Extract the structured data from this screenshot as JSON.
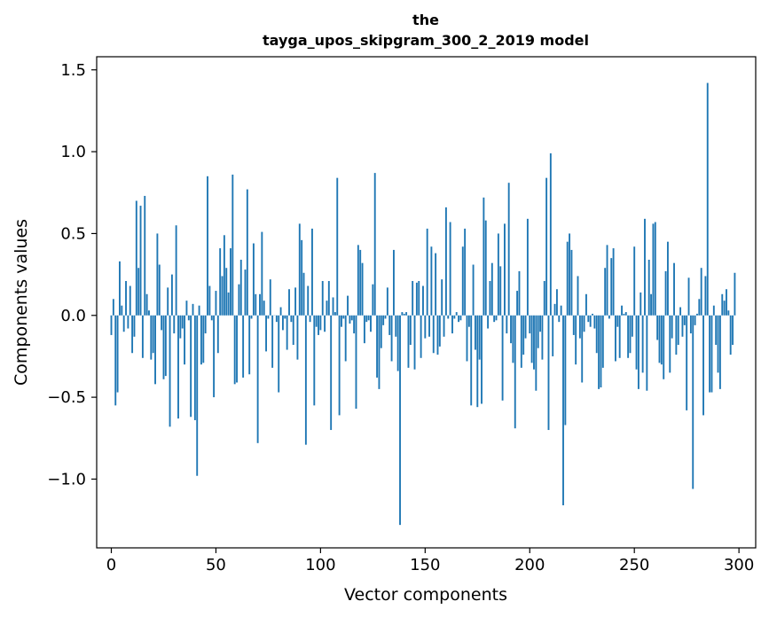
{
  "chart_data": {
    "type": "bar",
    "title_lines": [
      "the",
      "tayga_upos_skipgram_300_2_2019 model"
    ],
    "xlabel": "Vector components",
    "ylabel": "Components values",
    "xlim": [
      -7,
      308
    ],
    "ylim": [
      -1.42,
      1.58
    ],
    "xticks": [
      0,
      50,
      100,
      150,
      200,
      250,
      300
    ],
    "yticks": [
      -1.0,
      -0.5,
      0.0,
      0.5,
      1.0,
      1.5
    ],
    "ytick_labels": [
      "−1.0",
      "−0.5",
      "0.0",
      "0.5",
      "1.0",
      "1.5"
    ],
    "bar_color": "#1f77b4",
    "values": [
      -0.12,
      0.1,
      -0.55,
      -0.47,
      0.33,
      0.06,
      -0.1,
      0.21,
      -0.08,
      0.18,
      -0.23,
      -0.13,
      0.7,
      0.29,
      0.67,
      -0.26,
      0.73,
      0.13,
      0.03,
      -0.27,
      -0.23,
      -0.42,
      0.5,
      0.31,
      -0.09,
      -0.39,
      -0.37,
      0.17,
      -0.68,
      0.25,
      -0.11,
      0.55,
      -0.63,
      -0.14,
      -0.08,
      -0.3,
      0.09,
      -0.03,
      -0.62,
      0.07,
      -0.64,
      -0.98,
      0.06,
      -0.3,
      -0.29,
      -0.11,
      0.85,
      0.18,
      -0.03,
      -0.5,
      0.15,
      -0.23,
      0.41,
      0.24,
      0.49,
      0.29,
      0.14,
      0.41,
      0.86,
      -0.42,
      -0.41,
      0.19,
      0.34,
      -0.38,
      0.28,
      0.77,
      -0.36,
      -0.02,
      0.44,
      0.13,
      -0.78,
      0.13,
      0.51,
      0.09,
      -0.22,
      -0.02,
      0.22,
      -0.32,
      0.0,
      -0.04,
      -0.47,
      0.05,
      -0.09,
      -0.02,
      -0.21,
      0.16,
      -0.04,
      -0.18,
      0.17,
      -0.27,
      0.56,
      0.46,
      0.26,
      -0.79,
      0.18,
      -0.04,
      0.53,
      -0.55,
      -0.07,
      -0.12,
      -0.09,
      0.21,
      -0.1,
      0.09,
      0.21,
      -0.7,
      0.11,
      0.02,
      0.84,
      -0.61,
      -0.07,
      -0.02,
      -0.28,
      0.12,
      -0.05,
      -0.03,
      -0.11,
      -0.57,
      0.43,
      0.4,
      0.32,
      -0.17,
      -0.04,
      -0.03,
      -0.1,
      0.19,
      0.87,
      -0.38,
      -0.45,
      -0.2,
      -0.06,
      -0.02,
      0.17,
      -0.12,
      -0.28,
      0.4,
      -0.13,
      -0.34,
      -1.28,
      0.02,
      0.01,
      0.02,
      -0.32,
      -0.18,
      0.21,
      -0.33,
      0.2,
      0.21,
      -0.26,
      0.18,
      -0.14,
      0.53,
      -0.13,
      0.42,
      -0.23,
      0.38,
      -0.24,
      -0.19,
      0.22,
      -0.13,
      0.66,
      -0.02,
      0.57,
      -0.11,
      -0.02,
      0.02,
      -0.04,
      -0.03,
      0.42,
      0.53,
      -0.28,
      -0.07,
      -0.55,
      0.31,
      -0.21,
      -0.56,
      -0.27,
      -0.54,
      0.72,
      0.58,
      -0.08,
      0.21,
      0.32,
      -0.04,
      -0.03,
      0.5,
      0.3,
      -0.52,
      0.56,
      -0.11,
      0.81,
      -0.17,
      -0.29,
      -0.69,
      0.15,
      0.27,
      -0.32,
      -0.24,
      -0.14,
      0.59,
      -0.11,
      -0.29,
      -0.33,
      -0.46,
      -0.2,
      -0.1,
      -0.27,
      0.21,
      0.84,
      -0.7,
      0.99,
      -0.25,
      0.07,
      0.16,
      -0.04,
      0.06,
      -1.16,
      -0.67,
      0.45,
      0.5,
      0.4,
      -0.12,
      -0.3,
      0.24,
      -0.14,
      -0.41,
      -0.1,
      0.13,
      -0.04,
      -0.07,
      0.01,
      -0.08,
      -0.23,
      -0.45,
      -0.44,
      -0.32,
      0.29,
      0.43,
      -0.02,
      0.35,
      0.41,
      -0.28,
      -0.07,
      -0.26,
      0.06,
      0.01,
      0.02,
      -0.26,
      -0.23,
      -0.13,
      0.42,
      -0.33,
      -0.45,
      0.14,
      -0.35,
      0.59,
      -0.46,
      0.34,
      0.13,
      0.56,
      0.57,
      -0.15,
      -0.29,
      -0.3,
      -0.39,
      0.27,
      0.45,
      -0.35,
      -0.14,
      0.32,
      -0.24,
      -0.18,
      0.05,
      -0.13,
      -0.06,
      -0.58,
      0.23,
      -0.11,
      -1.06,
      -0.06,
      0.01,
      0.1,
      0.29,
      -0.61,
      0.24,
      1.42,
      -0.47,
      -0.47,
      0.06,
      -0.18,
      -0.35,
      -0.45,
      0.13,
      0.09,
      0.16,
      0.03,
      -0.24,
      -0.18,
      0.26
    ]
  }
}
